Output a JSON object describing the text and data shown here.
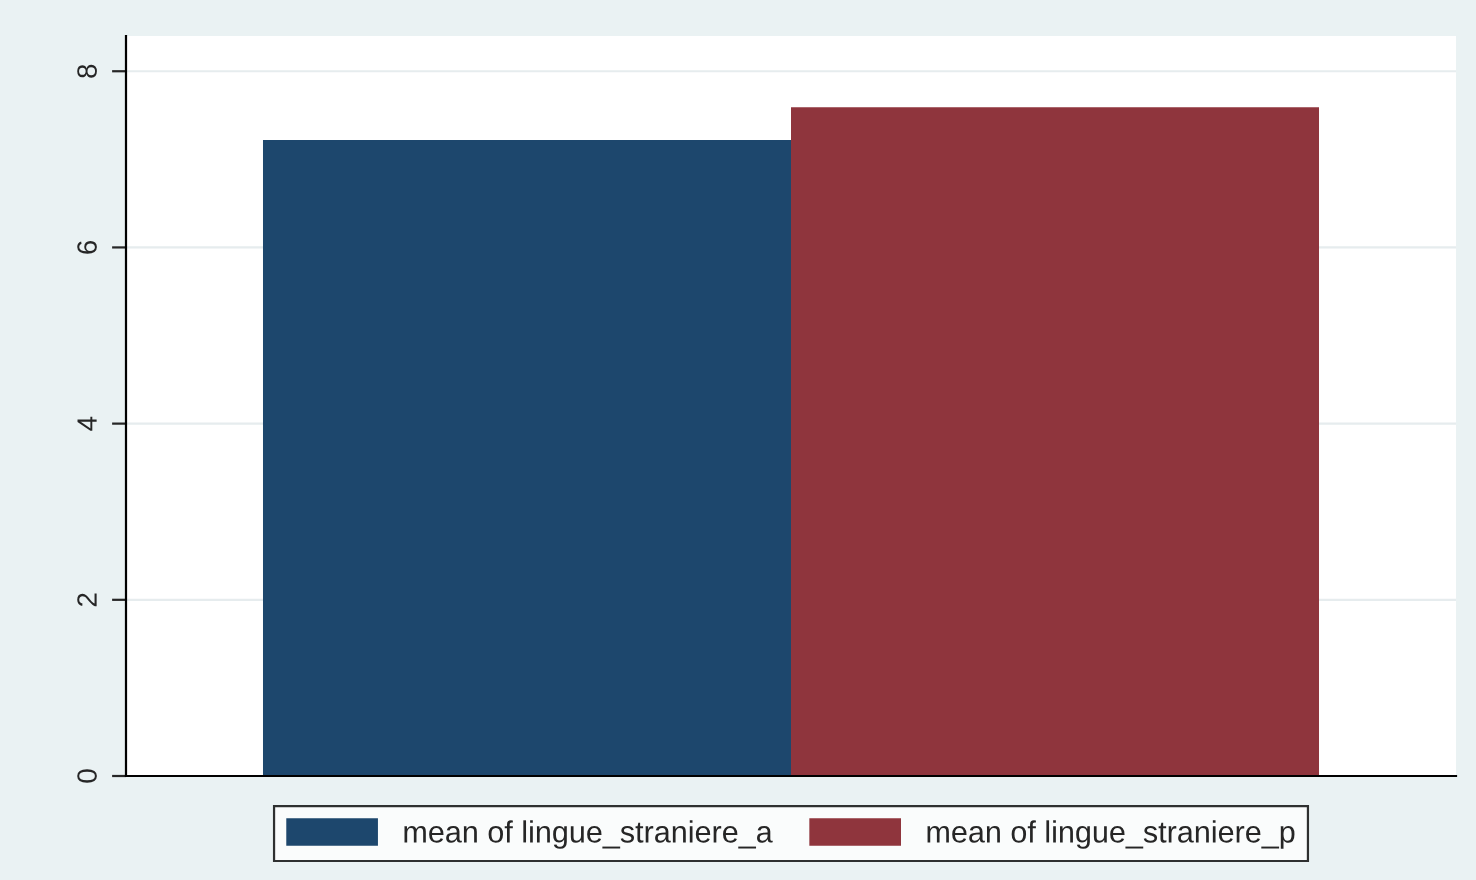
{
  "chart_data": {
    "type": "bar",
    "categories": [
      null
    ],
    "series": [
      {
        "name": "mean of lingue_straniere_a",
        "color": "#1d476d",
        "values": [
          7.22
        ]
      },
      {
        "name": "mean of lingue_straniere_p",
        "color": "#8f353d",
        "values": [
          7.59
        ]
      }
    ],
    "ylim": [
      0,
      8.4
    ],
    "yticks": [
      0,
      2,
      4,
      6,
      8
    ],
    "grid": "y",
    "legend": "bottom"
  }
}
